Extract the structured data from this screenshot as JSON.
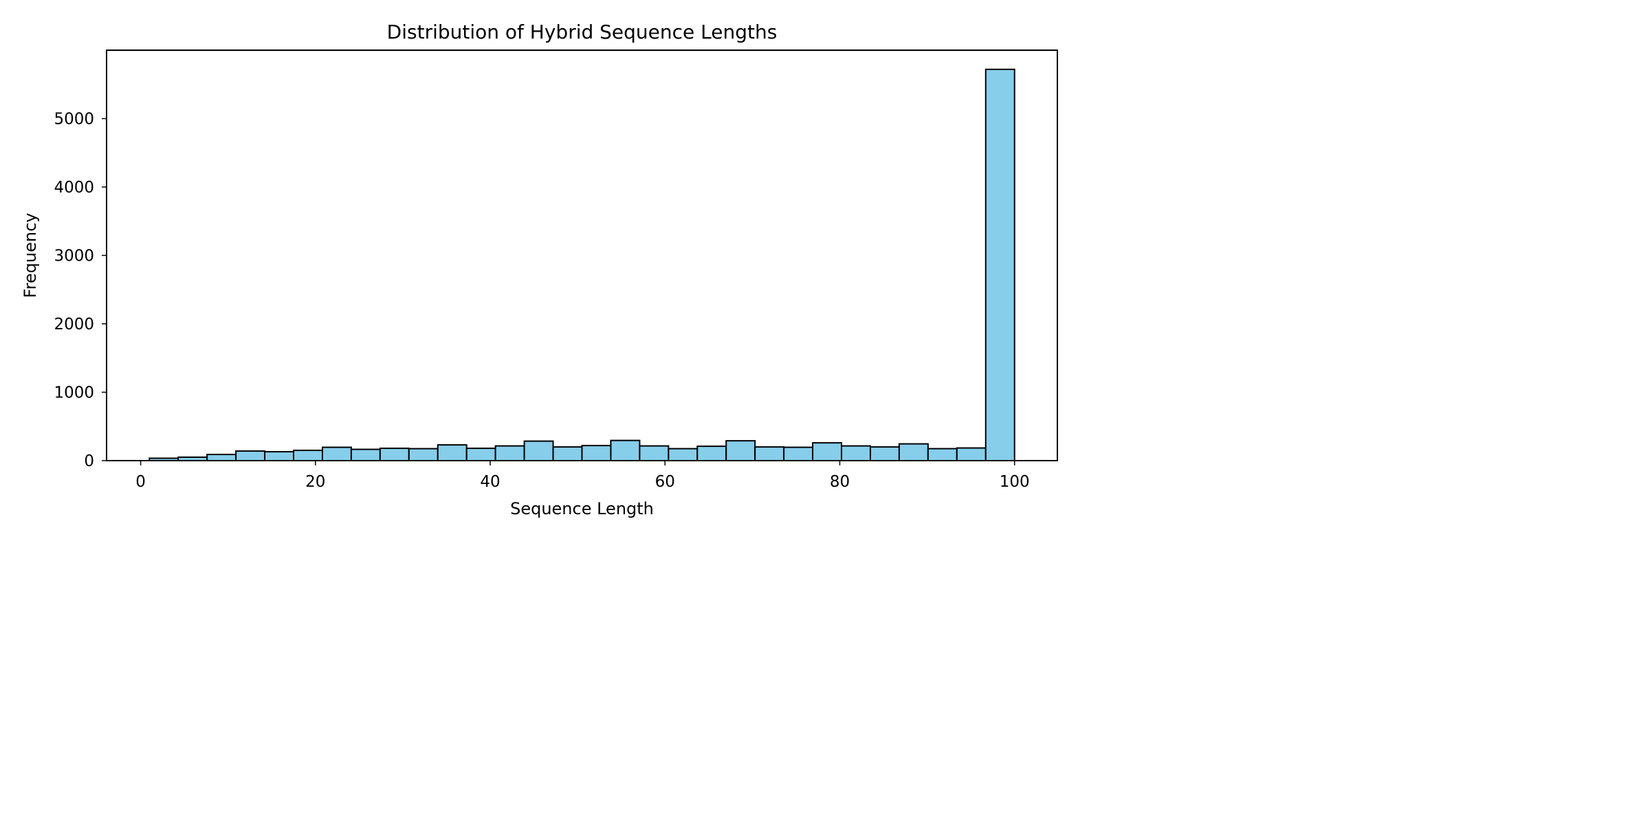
{
  "chart_data": {
    "type": "histogram",
    "title": "Distribution of Hybrid Sequence Lengths",
    "xlabel": "Sequence Length",
    "ylabel": "Frequency",
    "xlim": [
      -3.9,
      104.9
    ],
    "ylim": [
      0,
      6000
    ],
    "x_ticks": [
      0,
      20,
      40,
      60,
      80,
      100
    ],
    "y_ticks": [
      0,
      1000,
      2000,
      3000,
      4000,
      5000
    ],
    "bin_edges": [
      1.0,
      4.3,
      7.6,
      10.9,
      14.2,
      17.5,
      20.8,
      24.1,
      27.4,
      30.7,
      34.0,
      37.3,
      40.6,
      43.9,
      47.2,
      50.5,
      53.8,
      57.1,
      60.4,
      63.7,
      67.0,
      70.3,
      73.6,
      76.9,
      80.2,
      83.5,
      86.8,
      90.1,
      93.4,
      96.7,
      100.0
    ],
    "values": [
      35,
      50,
      90,
      140,
      130,
      150,
      195,
      165,
      180,
      175,
      230,
      180,
      215,
      285,
      200,
      220,
      295,
      215,
      175,
      210,
      290,
      200,
      195,
      260,
      215,
      200,
      245,
      175,
      185,
      5720
    ],
    "bar_color": "#87CEEB",
    "edge_color": "#000000",
    "grid": false,
    "legend": "none"
  }
}
